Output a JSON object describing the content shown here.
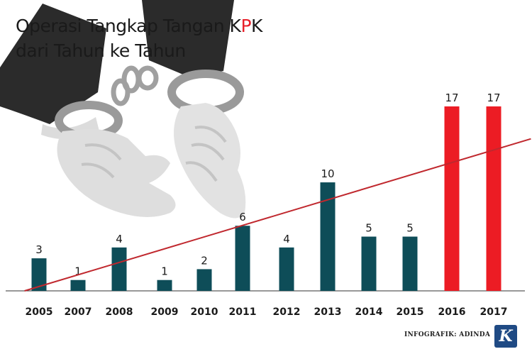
{
  "title": {
    "line1_before": "Operasi Tangkap Tangan K",
    "line1_accent": "P",
    "line1_after": "K",
    "line2": "dari Tahun ke Tahun"
  },
  "credit": "INFOGRAFIK: ADINDA",
  "logo_letter": "K",
  "colors": {
    "bar_default": "#0e4d58",
    "bar_highlight": "#ec1c24",
    "trend_line": "#c0282e",
    "baseline": "#333333"
  },
  "decor": {
    "image": "handcuffed-hands-illustration"
  },
  "chart_data": {
    "type": "bar",
    "categories": [
      "2005",
      "2007",
      "2008",
      "2009",
      "2010",
      "2011",
      "2012",
      "2013",
      "2014",
      "2015",
      "2016",
      "2017"
    ],
    "values": [
      3,
      1,
      4,
      1,
      2,
      6,
      4,
      10,
      5,
      5,
      17,
      17
    ],
    "highlight": [
      "2016",
      "2017"
    ],
    "ylim": [
      0,
      17
    ],
    "trendline": true,
    "grid": false,
    "title": "Operasi Tangkap Tangan KPK dari Tahun ke Tahun",
    "xlabel": "",
    "ylabel": ""
  }
}
